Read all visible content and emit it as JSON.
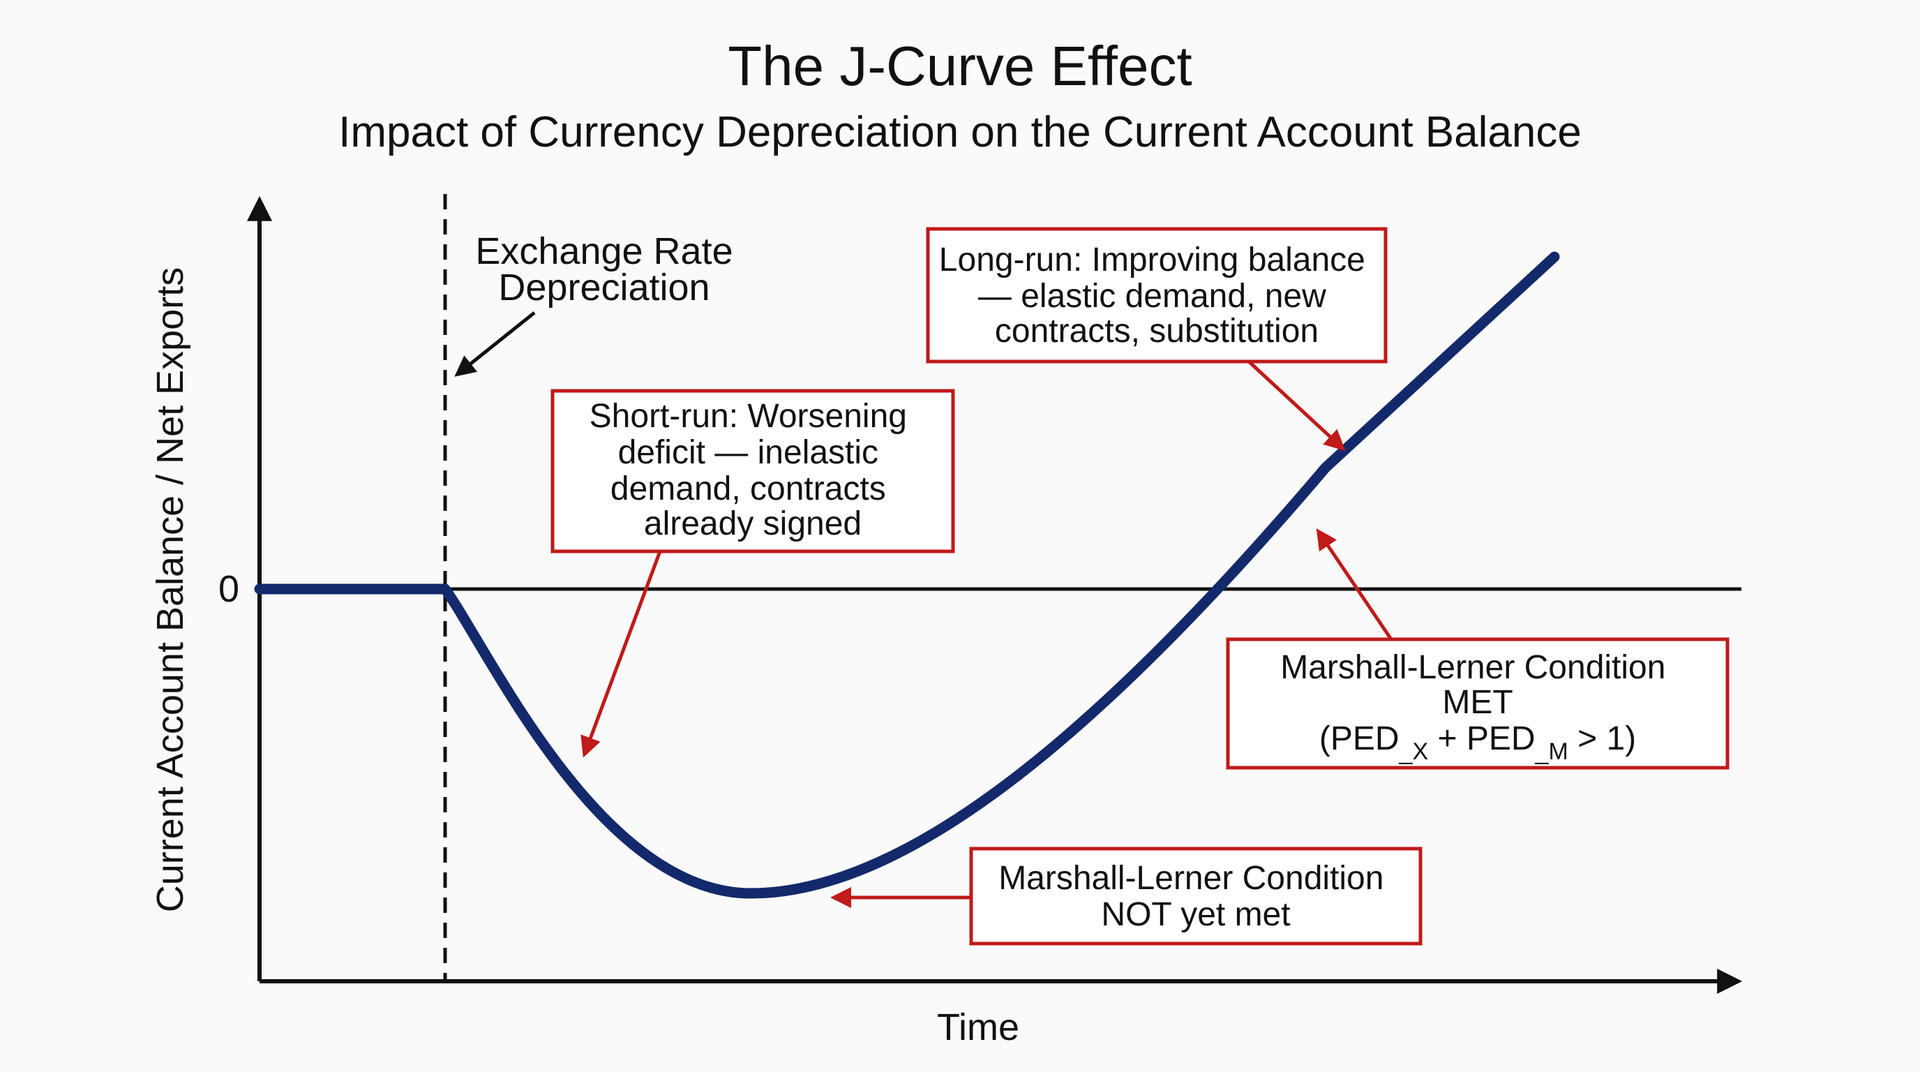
{
  "header": {
    "title": "The J-Curve Effect",
    "subtitle": "Impact of Currency Depreciation on the Current Account Balance"
  },
  "axes": {
    "y_label": "Current Account Balance / Net Exports",
    "x_label": "Time",
    "zero_tick": "0"
  },
  "depreciation_marker": {
    "line1": "Exchange Rate",
    "line2": "Depreciation"
  },
  "annotations": {
    "short_run": [
      "Short-run: Worsening",
      "deficit — inelastic",
      "demand, contracts",
      "already signed"
    ],
    "long_run": [
      "Long-run: Improving balance",
      "— elastic demand, new",
      "contracts, substitution"
    ],
    "ml_met": {
      "line1": "Marshall-Lerner Condition",
      "line2": "MET",
      "formula_open": "(PED",
      "sub_x": "_X",
      "formula_plus": " + PED",
      "sub_m": "_M",
      "formula_close": " > 1)"
    },
    "ml_not_met": [
      "Marshall-Lerner Condition",
      "NOT yet met"
    ]
  },
  "colors": {
    "curve": "#14296b",
    "annotation": "#c01a1a",
    "axis": "#111111",
    "background": "#fafafa"
  }
}
